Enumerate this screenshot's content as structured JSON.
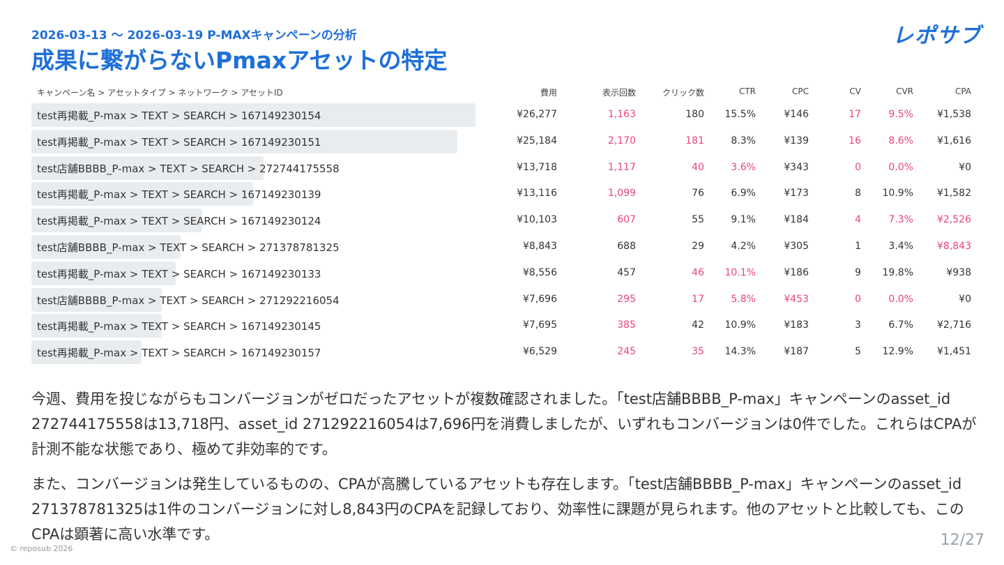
{
  "header": {
    "subtitle": "2026-03-13 ～ 2026-03-19 P-MAXキャンペーンの分析",
    "title": "成果に繋がらないPmaxアセットの特定",
    "logo": "レポサブ"
  },
  "table": {
    "columns": [
      "キャンペーン名 > アセットタイプ > ネットワーク > アセットID",
      "費用",
      "表示回数",
      "クリック数",
      "CTR",
      "CPC",
      "CV",
      "CVR",
      "CPA"
    ],
    "highlight_color": "#e8447a",
    "rows": [
      {
        "name": "test再掲載_P-max > TEXT > SEARCH > 167149230154",
        "cost": {
          "value": 26277,
          "label": "¥26,277"
        },
        "cells": [
          "1,163",
          "180",
          "15.5%",
          "¥146",
          "17",
          "9.5%",
          "¥1,538"
        ],
        "highlight": [
          0,
          4,
          5
        ]
      },
      {
        "name": "test再掲載_P-max > TEXT > SEARCH > 167149230151",
        "cost": {
          "value": 25184,
          "label": "¥25,184"
        },
        "cells": [
          "2,170",
          "181",
          "8.3%",
          "¥139",
          "16",
          "8.6%",
          "¥1,616"
        ],
        "highlight": [
          0,
          1,
          4,
          5
        ]
      },
      {
        "name": "test店舗BBBB_P-max > TEXT > SEARCH > 272744175558",
        "cost": {
          "value": 13718,
          "label": "¥13,718"
        },
        "cells": [
          "1,117",
          "40",
          "3.6%",
          "¥343",
          "0",
          "0.0%",
          "¥0"
        ],
        "highlight": [
          0,
          1,
          2,
          4,
          5
        ]
      },
      {
        "name": "test再掲載_P-max > TEXT > SEARCH > 167149230139",
        "cost": {
          "value": 13116,
          "label": "¥13,116"
        },
        "cells": [
          "1,099",
          "76",
          "6.9%",
          "¥173",
          "8",
          "10.9%",
          "¥1,582"
        ],
        "highlight": [
          0
        ]
      },
      {
        "name": "test再掲載_P-max > TEXT > SEARCH > 167149230124",
        "cost": {
          "value": 10103,
          "label": "¥10,103"
        },
        "cells": [
          "607",
          "55",
          "9.1%",
          "¥184",
          "4",
          "7.3%",
          "¥2,526"
        ],
        "highlight": [
          0,
          4,
          5,
          6
        ]
      },
      {
        "name": "test店舗BBBB_P-max > TEXT > SEARCH > 271378781325",
        "cost": {
          "value": 8843,
          "label": "¥8,843"
        },
        "cells": [
          "688",
          "29",
          "4.2%",
          "¥305",
          "1",
          "3.4%",
          "¥8,843"
        ],
        "highlight": [
          6
        ]
      },
      {
        "name": "test再掲載_P-max > TEXT > SEARCH > 167149230133",
        "cost": {
          "value": 8556,
          "label": "¥8,556"
        },
        "cells": [
          "457",
          "46",
          "10.1%",
          "¥186",
          "9",
          "19.8%",
          "¥938"
        ],
        "highlight": [
          1,
          2
        ]
      },
      {
        "name": "test店舗BBBB_P-max > TEXT > SEARCH > 271292216054",
        "cost": {
          "value": 7696,
          "label": "¥7,696"
        },
        "cells": [
          "295",
          "17",
          "5.8%",
          "¥453",
          "0",
          "0.0%",
          "¥0"
        ],
        "highlight": [
          0,
          1,
          2,
          3,
          4,
          5
        ]
      },
      {
        "name": "test再掲載_P-max > TEXT > SEARCH > 167149230145",
        "cost": {
          "value": 7695,
          "label": "¥7,695"
        },
        "cells": [
          "385",
          "42",
          "10.9%",
          "¥183",
          "3",
          "6.7%",
          "¥2,716"
        ],
        "highlight": [
          0
        ]
      },
      {
        "name": "test再掲載_P-max > TEXT > SEARCH > 167149230157",
        "cost": {
          "value": 6529,
          "label": "¥6,529"
        },
        "cells": [
          "245",
          "35",
          "14.3%",
          "¥187",
          "5",
          "12.9%",
          "¥1,451"
        ],
        "highlight": [
          0,
          1
        ]
      }
    ]
  },
  "paragraphs": [
    "今週、費用を投じながらもコンバージョンがゼロだったアセットが複数確認されました。「test店舗BBBB_P-max」キャンペーンのasset_id 272744175558は13,718円、asset_id 271292216054は7,696円を消費しましたが、いずれもコンバージョンは0件でした。これらはCPAが計測不能な状態であり、極めて非効率的です。",
    "また、コンバージョンは発生しているものの、CPAが高騰しているアセットも存在します。「test店舗BBBB_P-max」キャンペーンのasset_id 271378781325は1件のコンバージョンに対し8,843円のCPAを記録しており、効率性に課題が見られます。他のアセットと比較しても、このCPAは顕著に高い水準です。"
  ],
  "footer": {
    "copyright": "© reposub 2026",
    "page": "12/27"
  }
}
